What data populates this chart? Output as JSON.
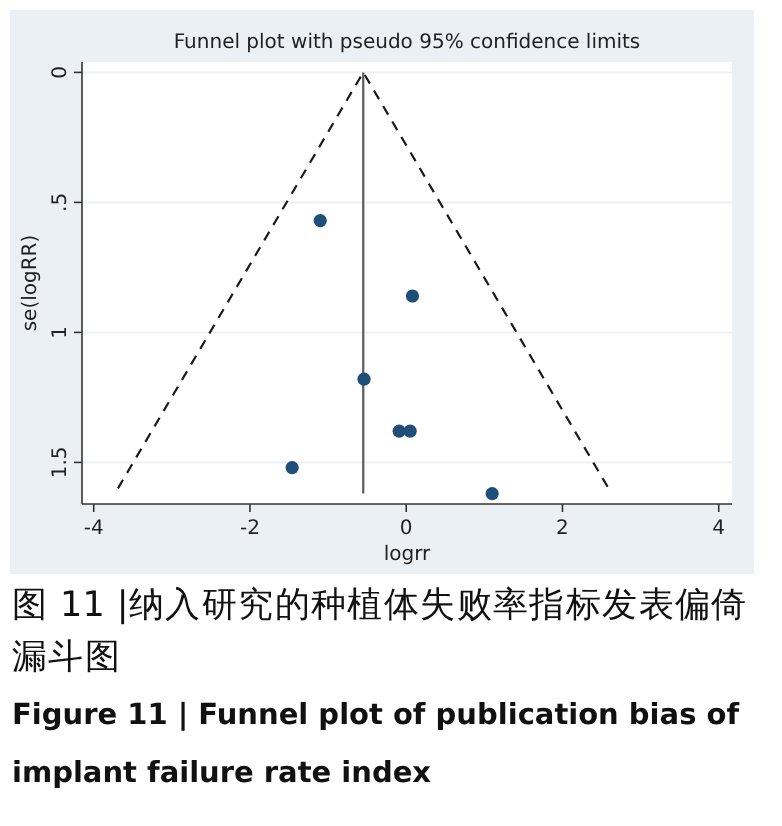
{
  "chart_data": {
    "type": "scatter",
    "title": "Funnel plot with pseudo 95% confidence limits",
    "xlabel": "logrr",
    "ylabel": "se(logRR)",
    "xlim": [
      -4.15,
      4.17
    ],
    "xticks": [
      -4,
      -2,
      0,
      2,
      4
    ],
    "ylim": [
      1.66,
      -0.04
    ],
    "yticks": [
      0,
      {
        "value": 0.5,
        "label": ".5"
      },
      1,
      1.5
    ],
    "grid": "y",
    "series": [
      {
        "type": "line",
        "line_style": "dashed",
        "color": "#1a1a1a",
        "x": [
          -3.69,
          -0.55,
          2.59
        ],
        "values": [
          1.6,
          0,
          1.6
        ]
      },
      {
        "type": "line",
        "line_style": "solid",
        "color": "#5a5a5a",
        "x": [
          -0.55,
          -0.55
        ],
        "values": [
          0,
          1.62
        ]
      },
      {
        "marker": "circle",
        "color": "#1f4e79",
        "x": [
          -1.1,
          0.08,
          -0.54,
          -0.09,
          0.05,
          -1.46,
          1.1
        ],
        "values": [
          0.57,
          0.86,
          1.18,
          1.38,
          1.38,
          1.52,
          1.62
        ]
      }
    ],
    "annotations": [
      "图 11 |纳入研究的种植体失败率指标发表偏倚漏斗图",
      "Figure 11 | Funnel plot of publication bias of implant failure rate index"
    ]
  }
}
